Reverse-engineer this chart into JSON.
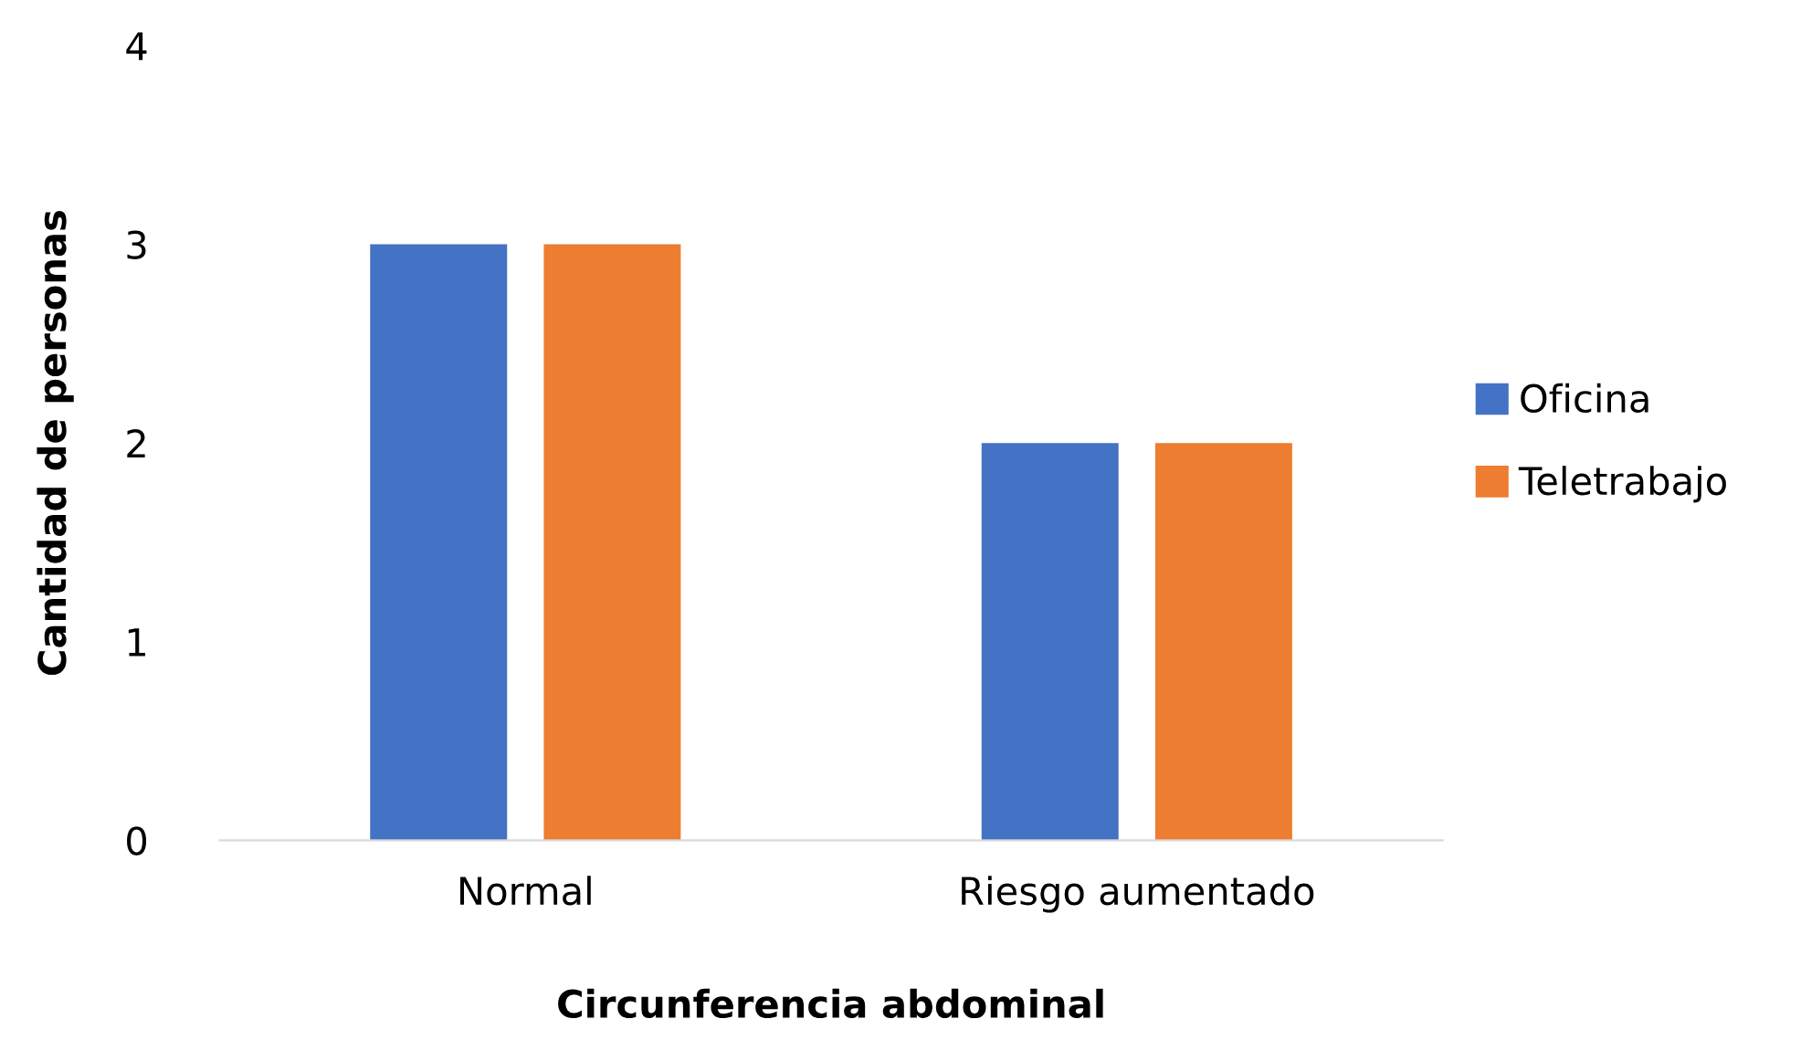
{
  "chart_data": {
    "type": "bar",
    "xlabel": "Circunferencia abdominal",
    "ylabel": "Cantidad de personas",
    "categories": [
      "Normal",
      "Riesgo aumentado"
    ],
    "series": [
      {
        "name": "Oficina",
        "color": "#4472c4",
        "values": [
          3,
          2
        ]
      },
      {
        "name": "Teletrabajo",
        "color": "#ed7d31",
        "values": [
          3,
          2
        ]
      }
    ],
    "ylim": [
      0,
      4
    ],
    "yticks": [
      0,
      1,
      2,
      3,
      4
    ],
    "grid": false,
    "legend": "right"
  }
}
